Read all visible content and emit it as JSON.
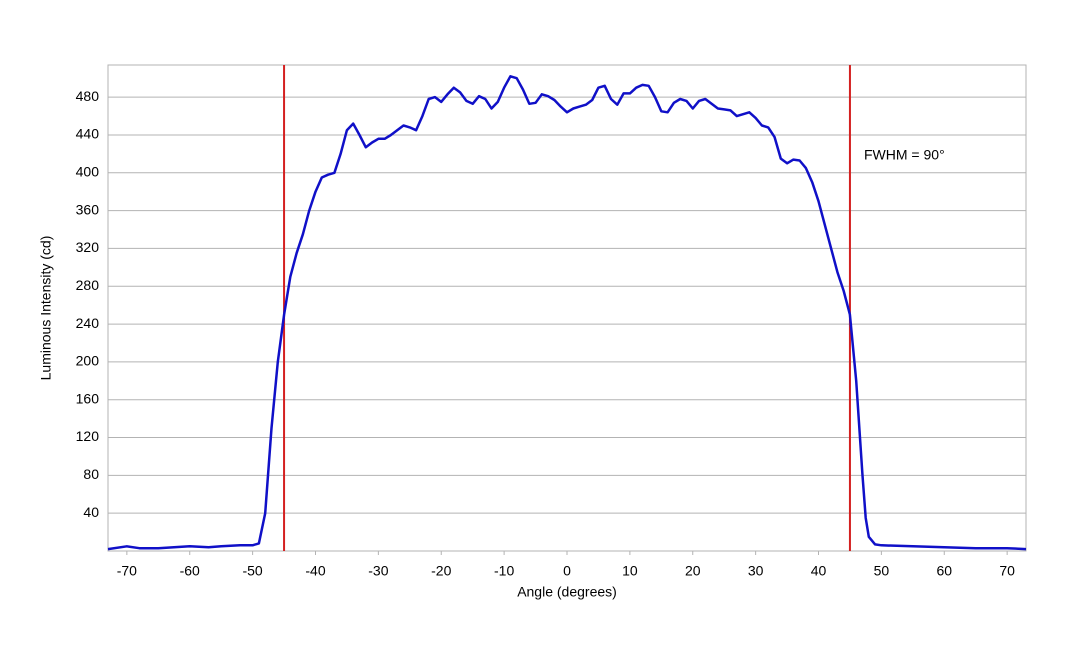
{
  "chart_data": {
    "type": "line",
    "x_label": "Angle (degrees)",
    "y_label": "Luminous Intensity (cd)",
    "annotation": "FWHM = 90°",
    "xlim": [
      -73,
      73
    ],
    "ylim": [
      0,
      514
    ],
    "xticks": [
      -70,
      -60,
      -50,
      -40,
      -30,
      -20,
      -10,
      0,
      10,
      20,
      30,
      40,
      50,
      60,
      70
    ],
    "yticks": [
      40,
      80,
      120,
      160,
      200,
      240,
      280,
      320,
      360,
      400,
      440,
      480
    ],
    "grid": true,
    "vlines": [
      -45,
      45
    ],
    "vline_color": "#d42020",
    "x": [
      -73,
      -70,
      -68,
      -65,
      -60,
      -57,
      -55,
      -52,
      -50,
      -49,
      -48,
      -47,
      -46,
      -45,
      -44,
      -43,
      -42,
      -41,
      -40,
      -39,
      -38,
      -37,
      -36,
      -35,
      -34,
      -33,
      -32,
      -31,
      -30,
      -29,
      -28,
      -27,
      -26,
      -25,
      -24,
      -23,
      -22,
      -21,
      -20,
      -19,
      -18,
      -17,
      -16,
      -15,
      -14,
      -13,
      -12,
      -11,
      -10,
      -9,
      -8,
      -7,
      -6,
      -5,
      -4,
      -3,
      -2,
      -1,
      0,
      1,
      2,
      3,
      4,
      5,
      6,
      7,
      8,
      9,
      10,
      11,
      12,
      13,
      14,
      15,
      16,
      17,
      18,
      19,
      20,
      21,
      22,
      23,
      24,
      25,
      26,
      27,
      28,
      29,
      30,
      31,
      32,
      33,
      34,
      35,
      36,
      37,
      38,
      39,
      40,
      41,
      42,
      43,
      44,
      45,
      46,
      47,
      47.5,
      48,
      49,
      50,
      55,
      60,
      65,
      70,
      73
    ],
    "series": [
      {
        "name": "Luminous Intensity",
        "color": "#1010c8",
        "values": [
          2,
          5,
          3,
          3,
          5,
          4,
          5,
          6,
          6,
          8,
          40,
          130,
          200,
          250,
          290,
          315,
          335,
          360,
          380,
          395,
          398,
          400,
          420,
          445,
          452,
          440,
          427,
          432,
          436,
          436,
          440,
          445,
          450,
          448,
          445,
          460,
          478,
          480,
          475,
          483,
          490,
          485,
          476,
          473,
          481,
          478,
          468,
          475,
          490,
          502,
          500,
          488,
          473,
          474,
          483,
          481,
          477,
          470,
          464,
          468,
          470,
          472,
          477,
          490,
          492,
          478,
          472,
          484,
          484,
          490,
          493,
          492,
          480,
          465,
          464,
          474,
          478,
          476,
          468,
          476,
          478,
          473,
          468,
          467,
          466,
          460,
          462,
          464,
          458,
          450,
          448,
          438,
          415,
          410,
          414,
          413,
          405,
          390,
          370,
          345,
          320,
          295,
          275,
          250,
          180,
          80,
          35,
          15,
          7,
          6,
          5,
          4,
          3,
          3,
          2
        ]
      }
    ]
  }
}
